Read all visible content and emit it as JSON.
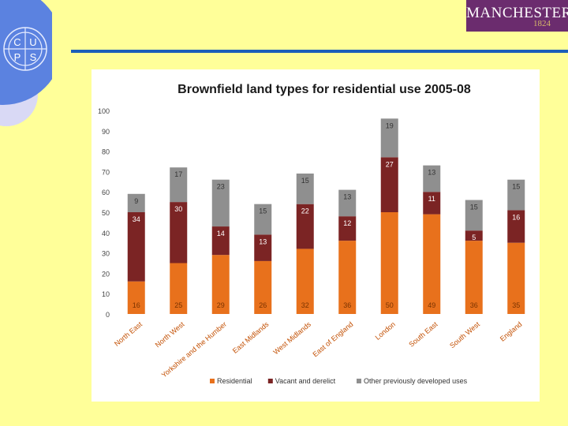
{
  "logo": {
    "badge_letters": [
      "C",
      "U",
      "P",
      "S"
    ],
    "university": "MANCHESTER",
    "year": "1824"
  },
  "chart_data": {
    "type": "bar",
    "stacked": true,
    "title": "Brownfield land types for residential use 2005-08",
    "xlabel": "",
    "ylabel": "",
    "ylim": [
      0,
      100
    ],
    "yticks": [
      0,
      10,
      20,
      30,
      40,
      50,
      60,
      70,
      80,
      90,
      100
    ],
    "categories": [
      "North East",
      "North West",
      "Yorkshire and the Humber",
      "East Midlands",
      "West Midlands",
      "East of England",
      "London",
      "South East",
      "South West",
      "England"
    ],
    "series": [
      {
        "name": "Residential",
        "color": "#e8711c",
        "values": [
          16,
          25,
          29,
          26,
          32,
          36,
          50,
          49,
          36,
          35
        ]
      },
      {
        "name": "Vacant and derelict",
        "color": "#7b2424",
        "values": [
          34,
          30,
          14,
          13,
          22,
          12,
          27,
          11,
          5,
          16
        ]
      },
      {
        "name": "Other previously developed uses",
        "color": "#8f8f8f",
        "values": [
          9,
          17,
          23,
          15,
          15,
          13,
          19,
          13,
          15,
          15
        ]
      }
    ],
    "legend_position": "bottom",
    "grid": false
  }
}
